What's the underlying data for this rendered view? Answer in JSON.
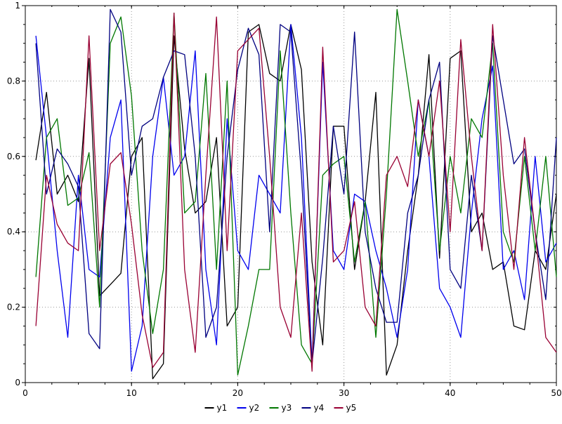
{
  "page": {
    "background": "#ffffff"
  },
  "chart_data": {
    "type": "line",
    "title": "",
    "xlabel": "",
    "ylabel": "",
    "xlim": [
      0,
      50
    ],
    "ylim": [
      0,
      1
    ],
    "x_ticks": [
      0,
      10,
      20,
      30,
      40,
      50
    ],
    "y_ticks": [
      0,
      0.2,
      0.4,
      0.6,
      0.8,
      1
    ],
    "x_tick_labels": [
      "0",
      "10",
      "20",
      "30",
      "40",
      "50"
    ],
    "y_tick_labels": [
      "0",
      "0.2",
      "0.4",
      "0.6",
      "0.8",
      "1"
    ],
    "x_minor_step": 2.5,
    "y_minor_step": 0.05,
    "grid": true,
    "grid_style": "dotted",
    "grid_color": "#999999",
    "frame_color": "#000000",
    "legend_position": "bottom-center",
    "legend_labels": [
      "y1",
      "y2",
      "y3",
      "y4",
      "y5"
    ],
    "x": [
      1,
      2,
      3,
      4,
      5,
      6,
      7,
      8,
      9,
      10,
      11,
      12,
      13,
      14,
      15,
      16,
      17,
      18,
      19,
      20,
      21,
      22,
      23,
      24,
      25,
      26,
      27,
      28,
      29,
      30,
      31,
      32,
      33,
      34,
      35,
      36,
      37,
      38,
      39,
      40,
      41,
      42,
      43,
      44,
      45,
      46,
      47,
      48,
      49,
      50
    ],
    "series": [
      {
        "name": "y1",
        "color": "#000000",
        "values": [
          0.59,
          0.77,
          0.5,
          0.55,
          0.48,
          0.86,
          0.23,
          0.26,
          0.29,
          0.6,
          0.65,
          0.01,
          0.05,
          0.92,
          0.62,
          0.45,
          0.48,
          0.65,
          0.15,
          0.2,
          0.93,
          0.95,
          0.82,
          0.8,
          0.95,
          0.83,
          0.32,
          0.1,
          0.68,
          0.68,
          0.3,
          0.48,
          0.77,
          0.02,
          0.1,
          0.35,
          0.55,
          0.87,
          0.33,
          0.86,
          0.88,
          0.4,
          0.45,
          0.3,
          0.32,
          0.15,
          0.14,
          0.35,
          0.3,
          0.5
        ]
      },
      {
        "name": "y2",
        "color": "#0000ee",
        "values": [
          0.92,
          0.65,
          0.35,
          0.12,
          0.55,
          0.3,
          0.28,
          0.65,
          0.75,
          0.03,
          0.15,
          0.6,
          0.81,
          0.55,
          0.6,
          0.88,
          0.3,
          0.1,
          0.7,
          0.35,
          0.3,
          0.55,
          0.5,
          0.45,
          0.95,
          0.65,
          0.05,
          0.85,
          0.35,
          0.3,
          0.5,
          0.48,
          0.35,
          0.25,
          0.12,
          0.3,
          0.75,
          0.6,
          0.25,
          0.2,
          0.12,
          0.45,
          0.7,
          0.84,
          0.3,
          0.35,
          0.22,
          0.6,
          0.32,
          0.37
        ]
      },
      {
        "name": "y3",
        "color": "#007700",
        "values": [
          0.28,
          0.65,
          0.7,
          0.47,
          0.49,
          0.61,
          0.2,
          0.9,
          0.97,
          0.76,
          0.35,
          0.13,
          0.3,
          0.98,
          0.45,
          0.48,
          0.82,
          0.3,
          0.8,
          0.02,
          0.15,
          0.3,
          0.3,
          0.88,
          0.45,
          0.1,
          0.05,
          0.55,
          0.58,
          0.6,
          0.32,
          0.48,
          0.12,
          0.5,
          0.99,
          0.8,
          0.6,
          0.75,
          0.35,
          0.6,
          0.45,
          0.7,
          0.65,
          0.9,
          0.4,
          0.32,
          0.6,
          0.35,
          0.6,
          0.28
        ]
      },
      {
        "name": "y4",
        "color": "#000080",
        "values": [
          0.9,
          0.5,
          0.62,
          0.58,
          0.52,
          0.13,
          0.09,
          0.99,
          0.93,
          0.55,
          0.68,
          0.7,
          0.81,
          0.88,
          0.87,
          0.6,
          0.12,
          0.2,
          0.6,
          0.83,
          0.94,
          0.87,
          0.4,
          0.95,
          0.93,
          0.55,
          0.05,
          0.33,
          0.68,
          0.5,
          0.93,
          0.4,
          0.25,
          0.16,
          0.16,
          0.45,
          0.55,
          0.75,
          0.85,
          0.3,
          0.25,
          0.55,
          0.35,
          0.92,
          0.75,
          0.58,
          0.62,
          0.4,
          0.22,
          0.65
        ]
      },
      {
        "name": "y5",
        "color": "#990033",
        "values": [
          0.15,
          0.55,
          0.42,
          0.37,
          0.35,
          0.92,
          0.35,
          0.58,
          0.61,
          0.42,
          0.18,
          0.04,
          0.08,
          0.98,
          0.3,
          0.08,
          0.55,
          0.97,
          0.35,
          0.88,
          0.91,
          0.94,
          0.6,
          0.2,
          0.12,
          0.45,
          0.03,
          0.89,
          0.32,
          0.35,
          0.48,
          0.2,
          0.15,
          0.55,
          0.6,
          0.52,
          0.75,
          0.6,
          0.8,
          0.4,
          0.91,
          0.6,
          0.35,
          0.95,
          0.55,
          0.3,
          0.65,
          0.4,
          0.12,
          0.08
        ]
      }
    ]
  }
}
